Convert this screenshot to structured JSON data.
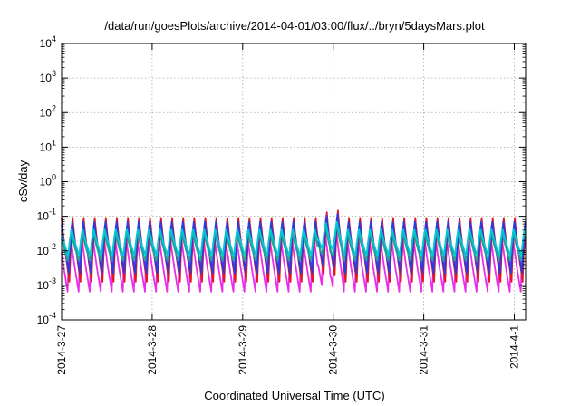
{
  "chart_data": {
    "type": "line",
    "title": "/data/run/goesPlots/archive/2014-04-01/03:00/flux/../bryn/5daysMars.plot",
    "xlabel": "Coordinated Universal Time (UTC)",
    "ylabel": "cSv/day",
    "y_scale": "log",
    "ylim": [
      0.0001,
      10000
    ],
    "y_ticks": [
      {
        "base": "10",
        "exp": "-4",
        "value": 0.0001
      },
      {
        "base": "10",
        "exp": "-3",
        "value": 0.001
      },
      {
        "base": "10",
        "exp": "-2",
        "value": 0.01
      },
      {
        "base": "10",
        "exp": "-1",
        "value": 0.1
      },
      {
        "base": "10",
        "exp": "0",
        "value": 1
      },
      {
        "base": "10",
        "exp": "1",
        "value": 10
      },
      {
        "base": "10",
        "exp": "2",
        "value": 100
      },
      {
        "base": "10",
        "exp": "3",
        "value": 1000
      },
      {
        "base": "10",
        "exp": "4",
        "value": 10000
      }
    ],
    "xlim": [
      "2014-03-27T00:00",
      "2014-04-01T03:00"
    ],
    "x_ticks": [
      {
        "label": "2014-3-27",
        "date": "2014-03-27T00:00"
      },
      {
        "label": "2014-3-28",
        "date": "2014-03-28T00:00"
      },
      {
        "label": "2014-3-29",
        "date": "2014-03-29T00:00"
      },
      {
        "label": "2014-3-30",
        "date": "2014-03-30T00:00"
      },
      {
        "label": "2014-3-31",
        "date": "2014-03-31T00:00"
      },
      {
        "label": "2014-4-1",
        "date": "2014-04-01T00:00"
      }
    ],
    "grid": true,
    "legend": "none",
    "pattern": {
      "period_hours": 2.93,
      "peak_dates": [
        "2014-03-29T21:30",
        "2014-03-30T01:00"
      ]
    },
    "series": [
      {
        "color": "#e8141e",
        "peak": 0.09,
        "trough": 0.0012
      },
      {
        "color": "#2a3ce0",
        "peak": 0.075,
        "trough": 0.0021
      },
      {
        "color": "#a020f0",
        "peak": 0.06,
        "trough": 0.0028
      },
      {
        "color": "#00c8d0",
        "peak": 0.045,
        "trough": 0.0068
      },
      {
        "color": "#2aa198",
        "peak": 0.035,
        "trough": 0.0048
      },
      {
        "color": "#e830e8",
        "peak": 0.028,
        "trough": 0.00065
      }
    ]
  }
}
